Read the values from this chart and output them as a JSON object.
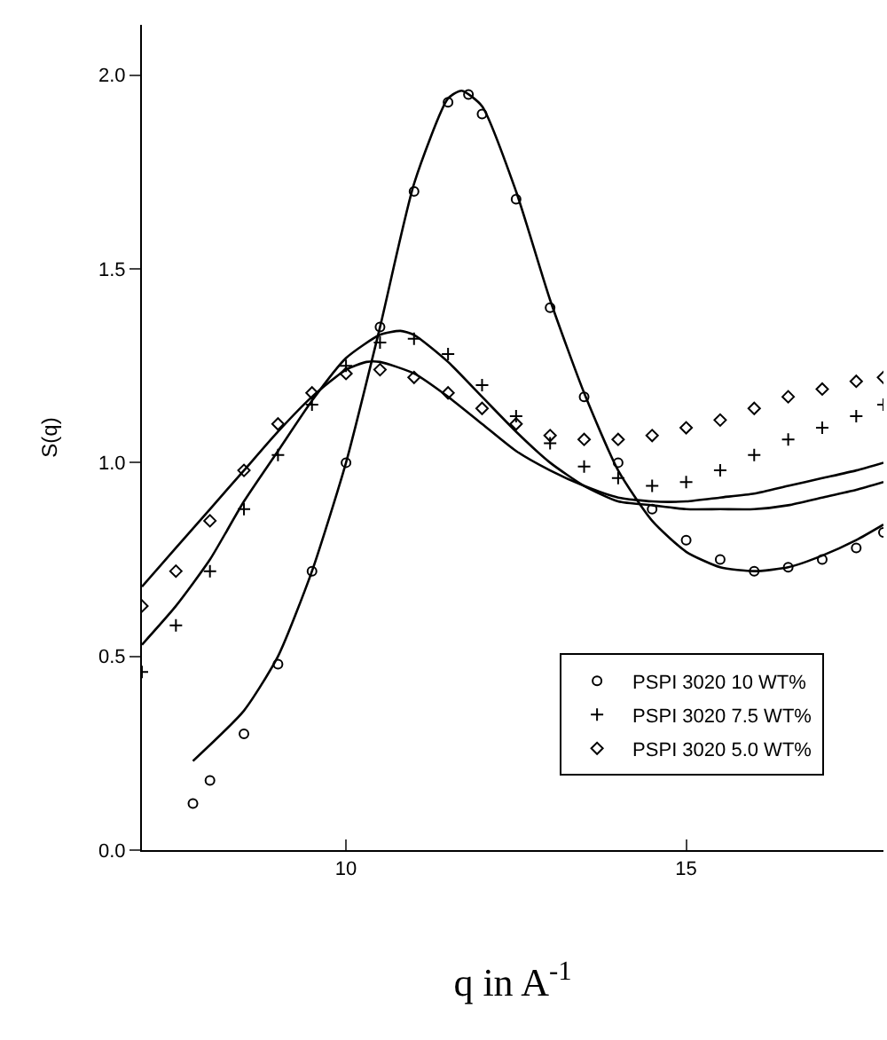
{
  "chart_data": {
    "type": "scatter",
    "xlabel": "q in A$^{-1}$",
    "ylabel": "S(q)",
    "xlim": [
      7,
      17.9
    ],
    "ylim": [
      0,
      2.13
    ],
    "xticks": [
      10,
      15
    ],
    "yticks": [
      {
        "value": 0,
        "label": "0.0"
      },
      {
        "value": 0.5,
        "label": "0.5"
      },
      {
        "value": 1,
        "label": "1.0"
      },
      {
        "value": 1.5,
        "label": "1.5"
      },
      {
        "value": 2,
        "label": "2.0"
      }
    ],
    "grid": false,
    "legend": "bottom right",
    "series": [
      {
        "name": "PSPI 3020 10 WT%",
        "color": "#000000",
        "marker": "circle",
        "x": [
          7.75,
          8,
          8.5,
          9,
          9.5,
          10,
          10.5,
          11,
          11.5,
          11.8,
          12,
          12.5,
          13,
          13.5,
          14,
          14.5,
          15,
          15.5,
          16,
          16.5,
          17,
          17.5,
          17.9
        ],
        "values": [
          0.12,
          0.18,
          0.3,
          0.48,
          0.72,
          1.0,
          1.35,
          1.7,
          1.93,
          1.95,
          1.9,
          1.68,
          1.4,
          1.17,
          1.0,
          0.88,
          0.8,
          0.75,
          0.72,
          0.73,
          0.75,
          0.78,
          0.82
        ]
      },
      {
        "name": "PSPI 3020 7.5 WT%",
        "color": "#000000",
        "marker": "cross",
        "x": [
          7,
          7.5,
          8,
          8.5,
          9,
          9.5,
          10,
          10.5,
          11,
          11.5,
          12,
          12.5,
          13,
          13.5,
          14,
          14.5,
          15,
          15.5,
          16,
          16.5,
          17,
          17.5,
          17.9
        ],
        "values": [
          0.46,
          0.58,
          0.72,
          0.88,
          1.02,
          1.15,
          1.25,
          1.31,
          1.32,
          1.28,
          1.2,
          1.12,
          1.05,
          0.99,
          0.96,
          0.94,
          0.95,
          0.98,
          1.02,
          1.06,
          1.09,
          1.12,
          1.15
        ]
      },
      {
        "name": "PSPI 3020 5.0 WT%",
        "color": "#000000",
        "marker": "diamond",
        "x": [
          7,
          7.5,
          8,
          8.5,
          9,
          9.5,
          10,
          10.5,
          11,
          11.5,
          12,
          12.5,
          13,
          13.5,
          14,
          14.5,
          15,
          15.5,
          16,
          16.5,
          17,
          17.5,
          17.9
        ],
        "values": [
          0.63,
          0.72,
          0.85,
          0.98,
          1.1,
          1.18,
          1.23,
          1.24,
          1.22,
          1.18,
          1.14,
          1.1,
          1.07,
          1.06,
          1.06,
          1.07,
          1.09,
          1.11,
          1.14,
          1.17,
          1.19,
          1.21,
          1.22
        ]
      },
      {
        "type": "line",
        "color": "#000000",
        "line_style": "solid",
        "x": [
          7.75,
          8.5,
          9,
          9.5,
          10,
          10.5,
          11,
          11.5,
          11.7,
          12,
          12.5,
          13,
          13.5,
          14,
          14.5,
          15,
          15.5,
          16,
          16.5,
          17,
          17.5,
          17.9
        ],
        "values": [
          0.23,
          0.36,
          0.5,
          0.72,
          1.0,
          1.35,
          1.72,
          1.94,
          1.96,
          1.92,
          1.7,
          1.42,
          1.18,
          0.98,
          0.85,
          0.77,
          0.73,
          0.72,
          0.73,
          0.76,
          0.8,
          0.84
        ]
      },
      {
        "type": "line",
        "color": "#000000",
        "line_style": "solid",
        "x": [
          7,
          7.5,
          8,
          8.5,
          9,
          9.5,
          10,
          10.5,
          10.8,
          11,
          11.5,
          12,
          12.5,
          13,
          13.5,
          14,
          14.5,
          15,
          15.5,
          16,
          16.5,
          17,
          17.5,
          17.9
        ],
        "values": [
          0.53,
          0.63,
          0.75,
          0.9,
          1.03,
          1.16,
          1.27,
          1.33,
          1.34,
          1.33,
          1.26,
          1.17,
          1.08,
          1.0,
          0.94,
          0.9,
          0.89,
          0.88,
          0.88,
          0.88,
          0.89,
          0.91,
          0.93,
          0.95
        ]
      },
      {
        "type": "line",
        "color": "#000000",
        "line_style": "solid",
        "x": [
          7,
          7.5,
          8,
          8.5,
          9,
          9.5,
          10,
          10.3,
          10.5,
          11,
          11.5,
          12,
          12.5,
          13,
          13.5,
          14,
          14.5,
          15,
          15.5,
          16,
          16.5,
          17,
          17.5,
          17.9
        ],
        "values": [
          0.68,
          0.78,
          0.88,
          0.98,
          1.08,
          1.17,
          1.24,
          1.26,
          1.26,
          1.23,
          1.17,
          1.1,
          1.03,
          0.98,
          0.94,
          0.91,
          0.9,
          0.9,
          0.91,
          0.92,
          0.94,
          0.96,
          0.98,
          1.0
        ]
      }
    ]
  }
}
